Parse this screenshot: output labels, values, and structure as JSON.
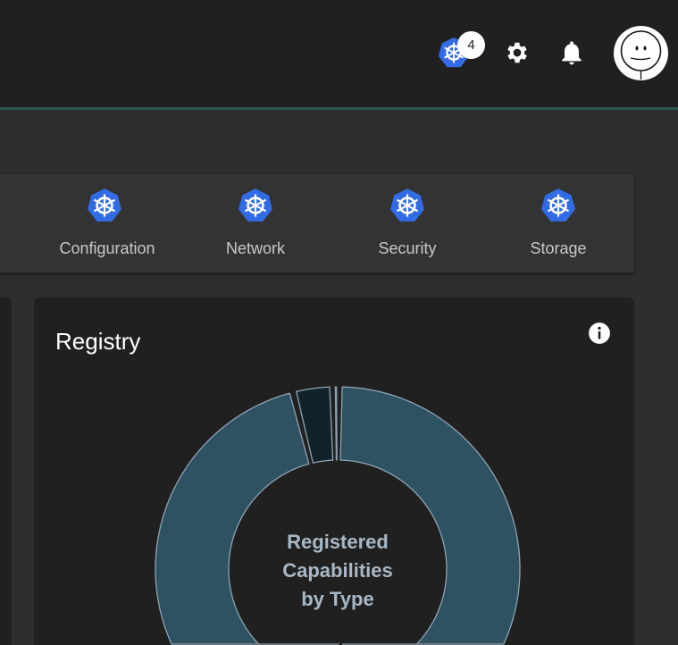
{
  "header": {
    "notification_count": "4",
    "icons": [
      "kubernetes-icon",
      "gear-icon",
      "bell-icon",
      "avatar"
    ]
  },
  "categories": [
    {
      "label": "Configuration"
    },
    {
      "label": "Network"
    },
    {
      "label": "Security"
    },
    {
      "label": "Storage"
    }
  ],
  "registry": {
    "title": "Registry",
    "center_label": [
      "Registered",
      "Capabilities",
      "by Type"
    ],
    "colors": {
      "main": "#2e5262",
      "dark": "#12222a",
      "stroke": "#8fa3b3"
    }
  },
  "chart_data": {
    "type": "pie",
    "title": "Registered Capabilities by Type",
    "donut": true,
    "values_approx_fraction": [
      0.49,
      0.46,
      0.035,
      0.005
    ]
  }
}
